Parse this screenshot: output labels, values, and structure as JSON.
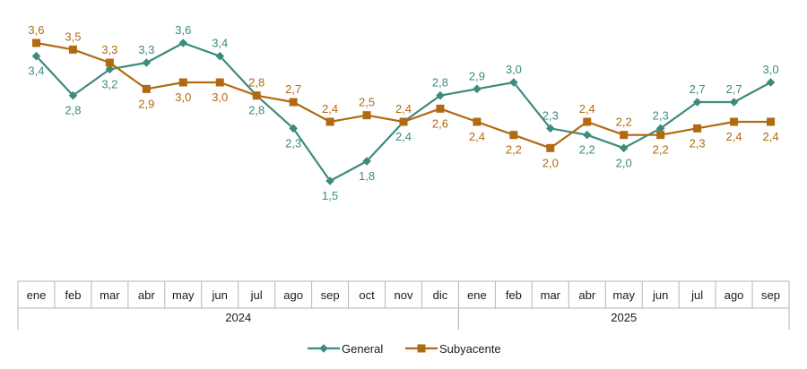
{
  "chart_data": {
    "type": "line",
    "title": "",
    "xlabel": "",
    "ylabel": "",
    "ylim": [
      0.5,
      4.0
    ],
    "categories": [
      "ene",
      "feb",
      "mar",
      "abr",
      "may",
      "jun",
      "jul",
      "ago",
      "sep",
      "oct",
      "nov",
      "dic",
      "ene",
      "feb",
      "mar",
      "abr",
      "may",
      "jun",
      "jul",
      "ago",
      "sep"
    ],
    "year_groups": [
      {
        "label": "2024",
        "start": 0,
        "end": 11
      },
      {
        "label": "2025",
        "start": 12,
        "end": 20
      }
    ],
    "series": [
      {
        "name": "General",
        "color": "#3d8a7e",
        "marker": "diamond",
        "values": [
          3.4,
          2.8,
          3.2,
          3.3,
          3.6,
          3.4,
          2.8,
          2.3,
          1.5,
          1.8,
          2.4,
          2.8,
          2.9,
          3.0,
          2.3,
          2.2,
          2.0,
          2.3,
          2.7,
          2.7,
          3.0
        ],
        "labels": [
          "3,4",
          "2,8",
          "3,2",
          "3,3",
          "3,6",
          "3,4",
          "2,8",
          "2,3",
          "1,5",
          "1,8",
          "2,4",
          "2,8",
          "2,9",
          "3,0",
          "2,3",
          "2,2",
          "2,0",
          "2,3",
          "2,7",
          "2,7",
          "3,0"
        ]
      },
      {
        "name": "Subyacente",
        "color": "#b06a10",
        "marker": "square",
        "values": [
          3.6,
          3.5,
          3.3,
          2.9,
          3.0,
          3.0,
          2.8,
          2.7,
          2.4,
          2.5,
          2.4,
          2.6,
          2.4,
          2.2,
          2.0,
          2.4,
          2.2,
          2.2,
          2.3,
          2.4,
          2.4
        ],
        "labels": [
          "3,6",
          "3,5",
          "3,3",
          "2,9",
          "3,0",
          "3,0",
          "2,8",
          "2,7",
          "2,4",
          "2,5",
          "2,4",
          "2,6",
          "2,4",
          "2,2",
          "2,0",
          "2,4",
          "2,2",
          "2,2",
          "2,3",
          "2,4",
          "2,4"
        ]
      }
    ],
    "legend": {
      "position": "bottom",
      "entries": [
        "General",
        "Subyacente"
      ]
    },
    "grid": false
  }
}
